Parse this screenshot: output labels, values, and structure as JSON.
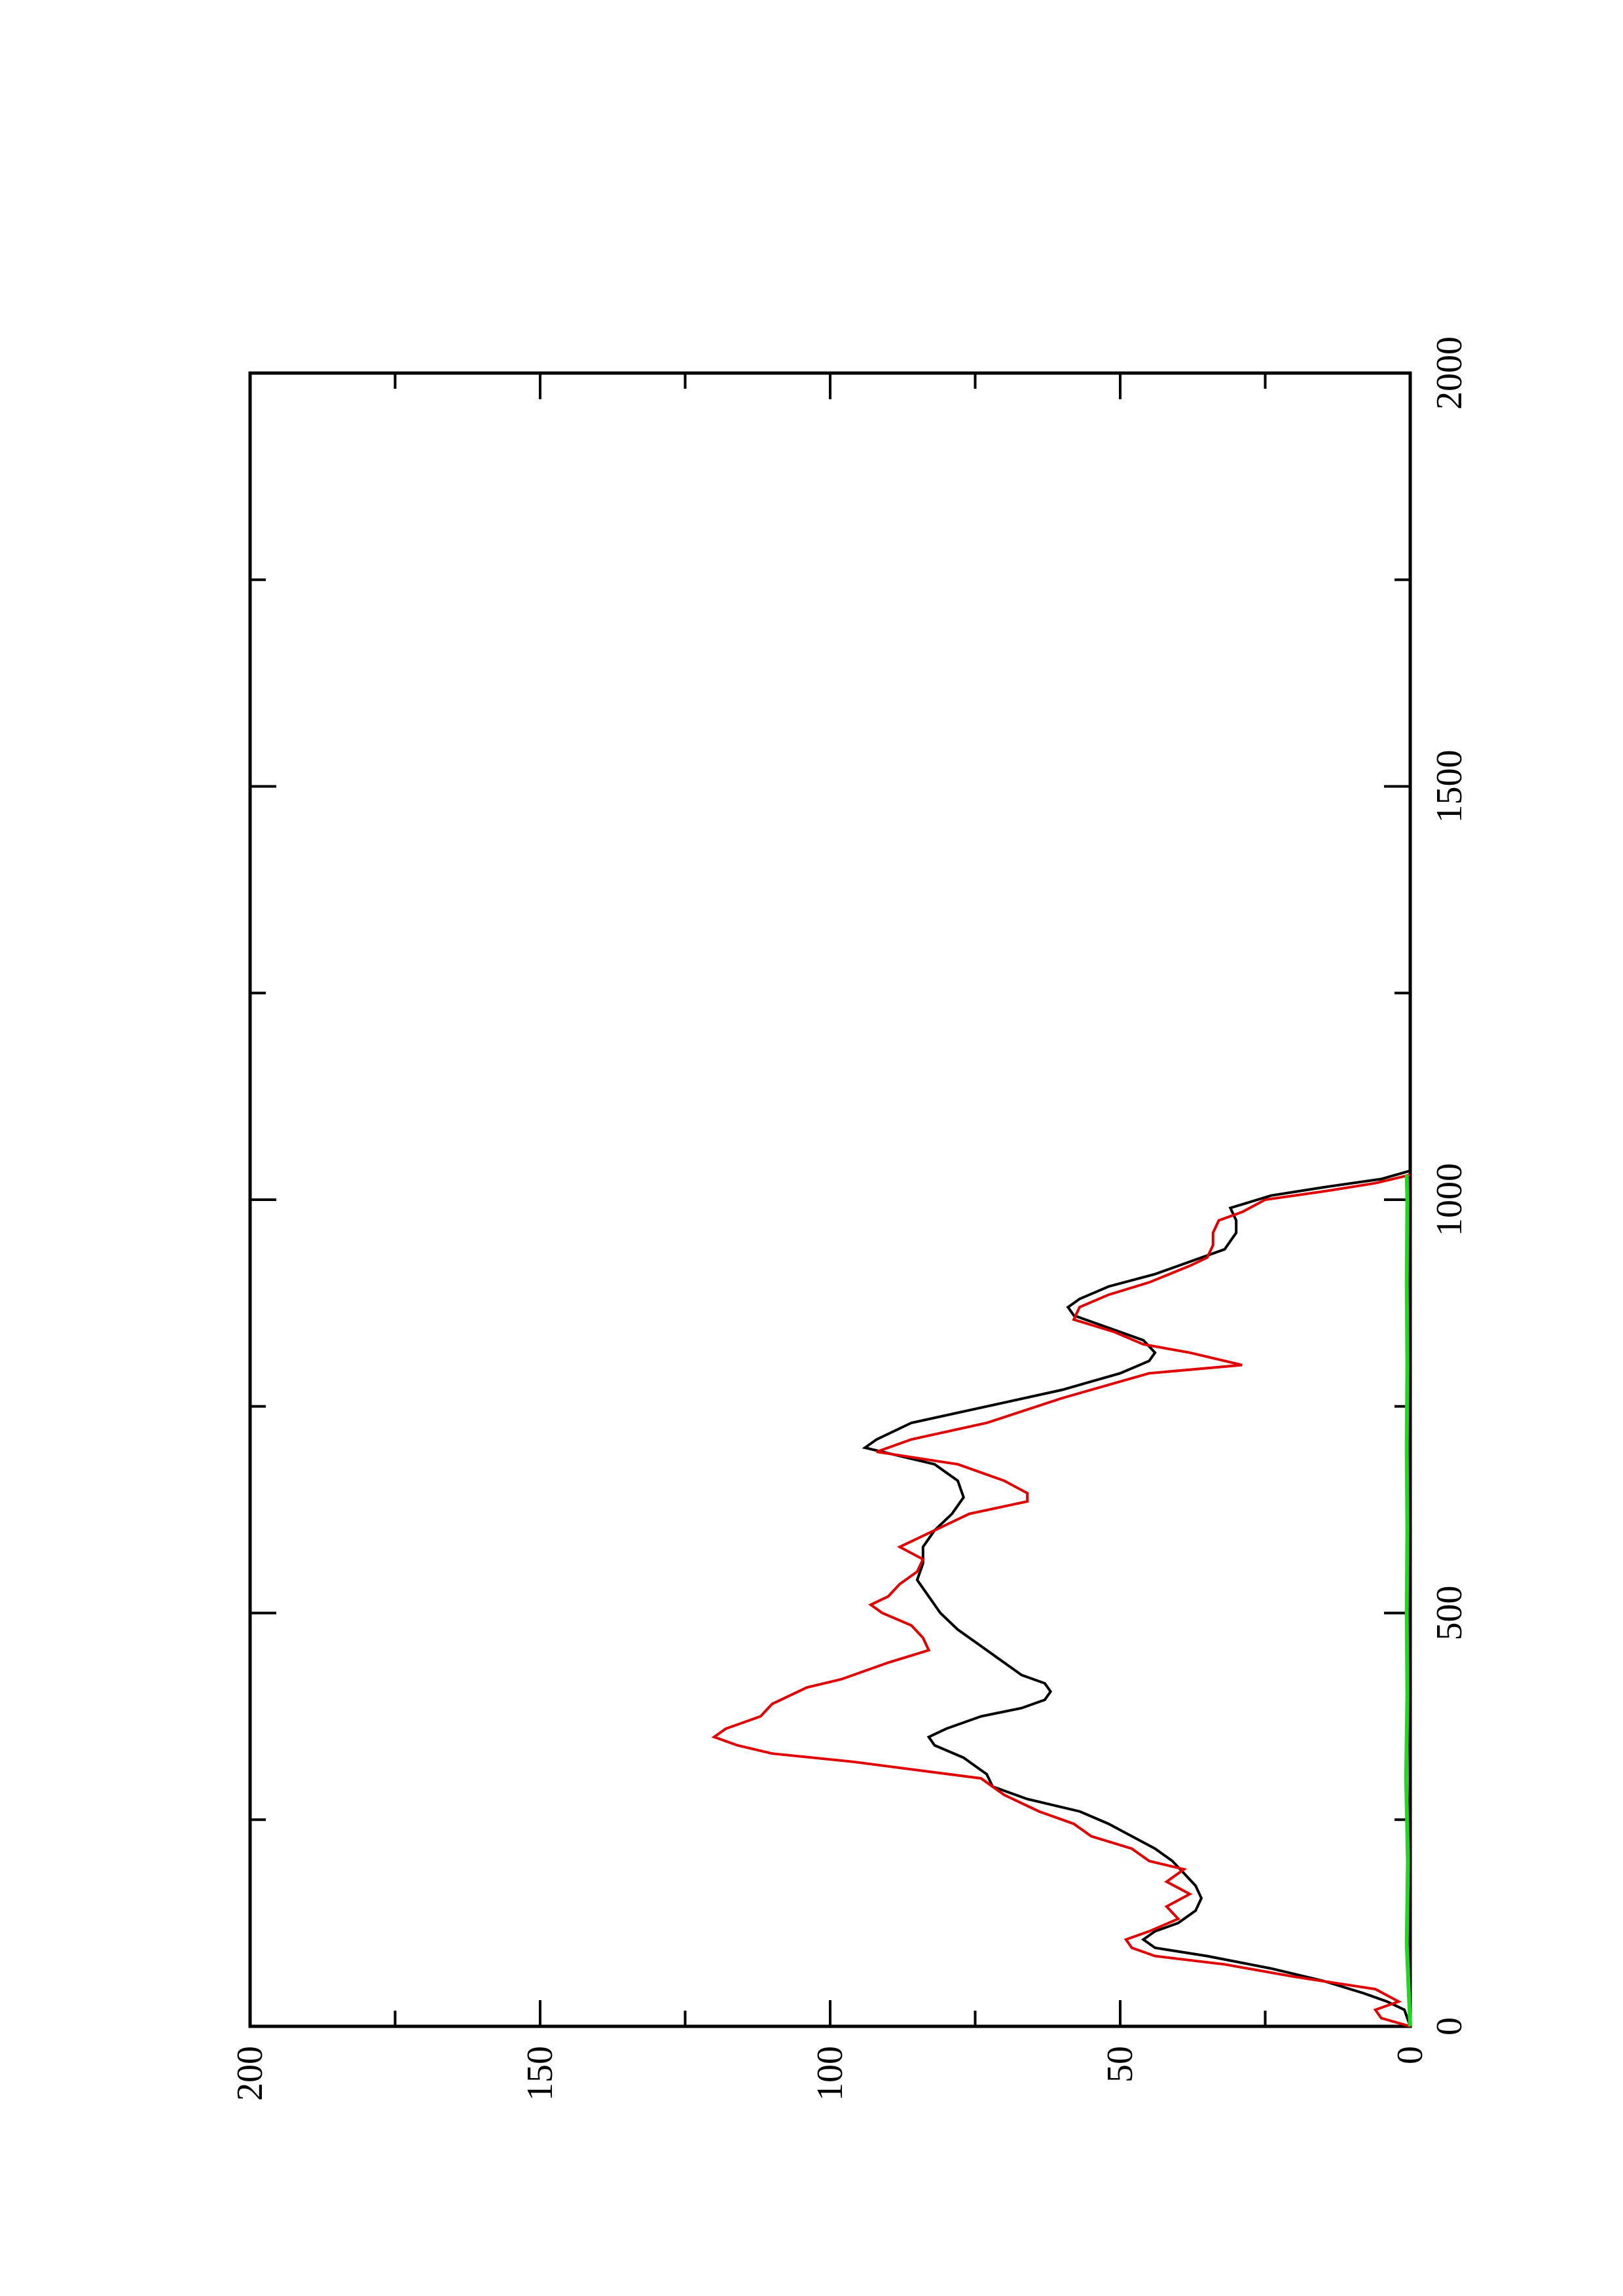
{
  "chart_data": {
    "type": "line",
    "orientation": "rotated-90-ccw",
    "title": "",
    "xlabel": "",
    "ylabel": "",
    "xlim": [
      0,
      2000
    ],
    "ylim": [
      0,
      200
    ],
    "x_ticks": [
      "0",
      "500",
      "1000",
      "1500",
      "2000"
    ],
    "y_ticks": [
      "0",
      "50",
      "100",
      "150",
      "200"
    ],
    "grid": false,
    "legend": "none",
    "series": [
      {
        "color": "#000000",
        "points": [
          [
            0,
            0
          ],
          [
            20,
            1
          ],
          [
            30,
            4
          ],
          [
            40,
            8
          ],
          [
            55,
            15
          ],
          [
            70,
            24
          ],
          [
            85,
            35
          ],
          [
            95,
            44
          ],
          [
            105,
            46
          ],
          [
            115,
            44
          ],
          [
            125,
            40
          ],
          [
            140,
            37
          ],
          [
            155,
            36
          ],
          [
            170,
            37
          ],
          [
            185,
            39
          ],
          [
            200,
            41
          ],
          [
            215,
            44
          ],
          [
            230,
            48
          ],
          [
            245,
            52
          ],
          [
            260,
            57
          ],
          [
            275,
            66
          ],
          [
            290,
            72
          ],
          [
            305,
            73
          ],
          [
            315,
            75
          ],
          [
            325,
            77
          ],
          [
            340,
            82
          ],
          [
            350,
            83
          ],
          [
            360,
            80
          ],
          [
            375,
            74
          ],
          [
            385,
            67
          ],
          [
            395,
            63
          ],
          [
            405,
            62
          ],
          [
            415,
            63
          ],
          [
            425,
            67
          ],
          [
            440,
            70
          ],
          [
            460,
            74
          ],
          [
            480,
            78
          ],
          [
            500,
            81
          ],
          [
            520,
            83
          ],
          [
            540,
            85
          ],
          [
            560,
            84
          ],
          [
            580,
            84
          ],
          [
            600,
            82
          ],
          [
            620,
            79
          ],
          [
            640,
            77
          ],
          [
            660,
            78
          ],
          [
            680,
            82
          ],
          [
            700,
            94
          ],
          [
            710,
            92
          ],
          [
            730,
            86
          ],
          [
            750,
            73
          ],
          [
            770,
            60
          ],
          [
            790,
            50
          ],
          [
            805,
            45
          ],
          [
            815,
            44
          ],
          [
            830,
            46
          ],
          [
            845,
            52
          ],
          [
            860,
            58
          ],
          [
            870,
            59
          ],
          [
            880,
            57
          ],
          [
            895,
            52
          ],
          [
            910,
            44
          ],
          [
            925,
            38
          ],
          [
            940,
            32
          ],
          [
            960,
            30
          ],
          [
            975,
            30
          ],
          [
            990,
            31
          ],
          [
            1005,
            24
          ],
          [
            1015,
            15
          ],
          [
            1025,
            5
          ],
          [
            1035,
            0
          ]
        ]
      },
      {
        "color": "#e00000",
        "points": [
          [
            0,
            0
          ],
          [
            10,
            5
          ],
          [
            20,
            6
          ],
          [
            30,
            2
          ],
          [
            45,
            6
          ],
          [
            60,
            20
          ],
          [
            75,
            32
          ],
          [
            85,
            44
          ],
          [
            95,
            48
          ],
          [
            105,
            49
          ],
          [
            115,
            45
          ],
          [
            130,
            40
          ],
          [
            145,
            42
          ],
          [
            160,
            38
          ],
          [
            175,
            42
          ],
          [
            190,
            39
          ],
          [
            200,
            45
          ],
          [
            215,
            48
          ],
          [
            230,
            55
          ],
          [
            245,
            58
          ],
          [
            260,
            64
          ],
          [
            280,
            70
          ],
          [
            300,
            74
          ],
          [
            310,
            85
          ],
          [
            320,
            96
          ],
          [
            330,
            110
          ],
          [
            340,
            116
          ],
          [
            350,
            120
          ],
          [
            360,
            118
          ],
          [
            375,
            112
          ],
          [
            390,
            110
          ],
          [
            410,
            104
          ],
          [
            420,
            98
          ],
          [
            440,
            90
          ],
          [
            455,
            83
          ],
          [
            470,
            84
          ],
          [
            485,
            86
          ],
          [
            500,
            91
          ],
          [
            510,
            93
          ],
          [
            520,
            90
          ],
          [
            535,
            88
          ],
          [
            550,
            85
          ],
          [
            565,
            84
          ],
          [
            580,
            88
          ],
          [
            600,
            82
          ],
          [
            620,
            76
          ],
          [
            635,
            66
          ],
          [
            645,
            66
          ],
          [
            660,
            70
          ],
          [
            680,
            78
          ],
          [
            695,
            92
          ],
          [
            710,
            86
          ],
          [
            730,
            73
          ],
          [
            760,
            60
          ],
          [
            790,
            45
          ],
          [
            800,
            29
          ],
          [
            815,
            38
          ],
          [
            825,
            46
          ],
          [
            840,
            51
          ],
          [
            855,
            58
          ],
          [
            870,
            57
          ],
          [
            885,
            52
          ],
          [
            900,
            45
          ],
          [
            920,
            38
          ],
          [
            930,
            35
          ],
          [
            945,
            34
          ],
          [
            960,
            34
          ],
          [
            975,
            33
          ],
          [
            985,
            29
          ],
          [
            1000,
            25
          ],
          [
            1010,
            15
          ],
          [
            1020,
            6
          ],
          [
            1030,
            0
          ]
        ]
      },
      {
        "color": "#1fd81f",
        "points": [
          [
            0,
            0
          ],
          [
            100,
            0.6
          ],
          [
            200,
            0.4
          ],
          [
            300,
            0.7
          ],
          [
            400,
            0.5
          ],
          [
            500,
            0.6
          ],
          [
            600,
            0.5
          ],
          [
            700,
            0.6
          ],
          [
            800,
            0.5
          ],
          [
            900,
            0.6
          ],
          [
            1000,
            0.5
          ],
          [
            1030,
            0.6
          ]
        ]
      }
    ]
  }
}
